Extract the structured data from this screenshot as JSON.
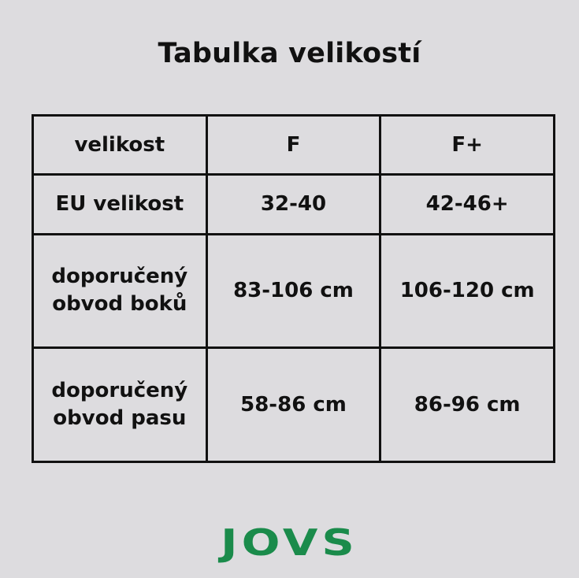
{
  "title": "Tabulka velikostí",
  "table": {
    "rows": [
      [
        "velikost",
        "F",
        "F+"
      ],
      [
        "EU velikost",
        "32-40",
        "42-46+"
      ],
      [
        "doporučený obvod boků",
        "83-106 cm",
        "106-120 cm"
      ],
      [
        "doporučený obvod pasu",
        "58-86 cm",
        "86-96 cm"
      ]
    ]
  },
  "logo": "JOVS",
  "colors": {
    "background": "#dddcdf",
    "logo": "#1a8b4b",
    "border": "#111111"
  }
}
